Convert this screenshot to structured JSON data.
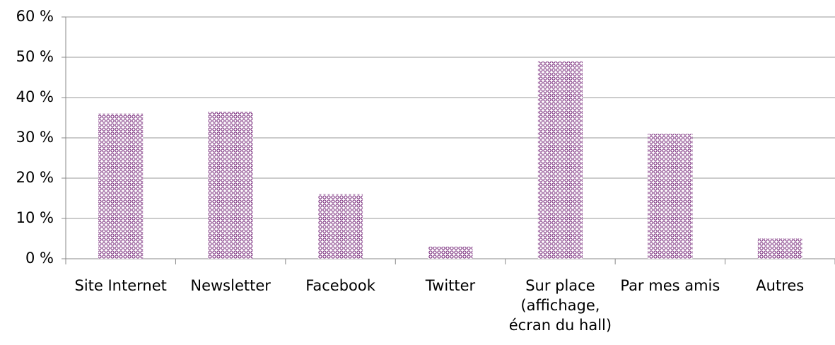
{
  "chart_data": {
    "type": "bar",
    "categories": [
      "Site Internet",
      "Newsletter",
      "Facebook",
      "Twitter",
      "Sur place (affichage, écran du hall)",
      "Par mes amis",
      "Autres"
    ],
    "values": [
      36,
      36.5,
      16,
      3,
      49,
      31,
      5
    ],
    "color": "#7b2f7e",
    "ylim": [
      0,
      60
    ],
    "yticks": [
      {
        "value": 0,
        "label": "0 %"
      },
      {
        "value": 10,
        "label": "10 %"
      },
      {
        "value": 20,
        "label": "20 %"
      },
      {
        "value": 30,
        "label": "30 %"
      },
      {
        "value": 40,
        "label": "40 %"
      },
      {
        "value": 50,
        "label": "50 %"
      },
      {
        "value": 60,
        "label": "60 %"
      }
    ],
    "grid": true
  }
}
